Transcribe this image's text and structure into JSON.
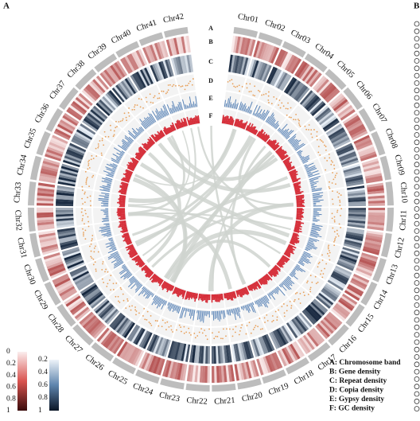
{
  "panel_label": "A",
  "next_panel_label": "B",
  "chromosomes": [
    "Chr01",
    "Chr02",
    "Chr03",
    "Chr04",
    "Chr05",
    "Chr06",
    "Chr07",
    "Chr08",
    "Chr09",
    "Chr10",
    "Chr11",
    "Chr12",
    "Chr13",
    "Chr14",
    "Chr15",
    "Chr16",
    "Chr17",
    "Chr18",
    "Chr19",
    "Chr20",
    "Chr21",
    "Chr22",
    "Chr23",
    "Chr24",
    "Chr25",
    "Chr26",
    "Chr27",
    "Chr28",
    "Chr29",
    "Chr30",
    "Chr31",
    "Chr32",
    "Chr33",
    "Chr34",
    "Chr35",
    "Chr36",
    "Chr37",
    "Chr38",
    "Chr39",
    "Chr40",
    "Chr41",
    "Chr42"
  ],
  "track_labels": [
    "A",
    "B",
    "C",
    "D",
    "E",
    "F"
  ],
  "colorbars": [
    {
      "ticks": [
        "0",
        "0.2",
        "0.4",
        "0.6",
        "0.8",
        "1"
      ]
    },
    {
      "ticks": [
        "0.2",
        "0.4",
        "0.6",
        "0.8",
        "1"
      ]
    }
  ],
  "legend": [
    "A: Chromosome band",
    "B:  Gene density",
    "C: Repeat density",
    "D: Copia density",
    "E: Gypsy density",
    "F: GC density"
  ]
}
